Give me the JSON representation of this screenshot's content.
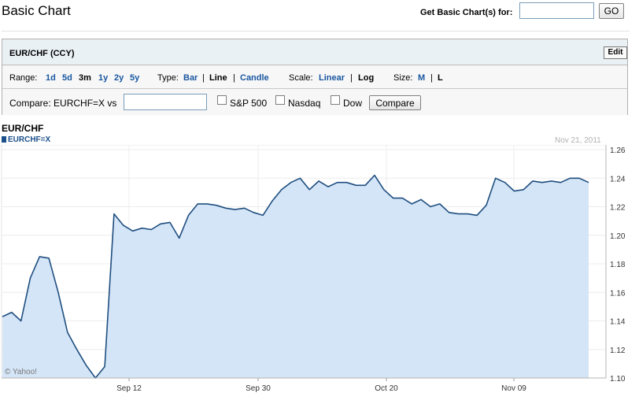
{
  "header": {
    "title": "Basic Chart",
    "lookup_label": "Get Basic Chart(s) for:",
    "lookup_value": "",
    "go_label": "GO"
  },
  "panel": {
    "symbol": "EUR/CHF (CCY)",
    "edit_label": "Edit",
    "range": {
      "label": "Range:",
      "options": [
        "1d",
        "5d",
        "3m",
        "1y",
        "2y",
        "5y"
      ],
      "selected": "3m"
    },
    "type": {
      "label": "Type:",
      "options": [
        "Bar",
        "Line",
        "Candle"
      ],
      "selected": "Line"
    },
    "scale": {
      "label": "Scale:",
      "options": [
        "Linear",
        "Log"
      ],
      "selected": "Log"
    },
    "size": {
      "label": "Size:",
      "options": [
        "M",
        "L"
      ]
    },
    "compare": {
      "label": "Compare: EURCHF=X vs",
      "input_value": "",
      "indices": [
        "S&P 500",
        "Nasdaq",
        "Dow"
      ],
      "button_label": "Compare"
    }
  },
  "chart_data": {
    "type": "area",
    "title": "EUR/CHF",
    "series": [
      {
        "name": "EURCHF=X",
        "values": [
          1.143,
          1.146,
          1.14,
          1.17,
          1.185,
          1.184,
          1.16,
          1.132,
          1.12,
          1.109,
          1.1,
          1.108,
          1.215,
          1.207,
          1.203,
          1.205,
          1.204,
          1.208,
          1.209,
          1.198,
          1.214,
          1.222,
          1.222,
          1.221,
          1.219,
          1.218,
          1.219,
          1.216,
          1.214,
          1.224,
          1.232,
          1.237,
          1.24,
          1.232,
          1.238,
          1.234,
          1.237,
          1.237,
          1.235,
          1.235,
          1.242,
          1.232,
          1.226,
          1.226,
          1.222,
          1.225,
          1.22,
          1.222,
          1.216,
          1.215,
          1.215,
          1.214,
          1.221,
          1.24,
          1.237,
          1.231,
          1.232,
          1.238,
          1.237,
          1.238,
          1.237,
          1.24,
          1.24,
          1.237
        ]
      }
    ],
    "x_ticks": [
      "Sep 12",
      "Sep 30",
      "Oct 20",
      "Nov 09"
    ],
    "y_ticks": [
      "1.10",
      "1.12",
      "1.14",
      "1.16",
      "1.18",
      "1.20",
      "1.22",
      "1.24",
      "1.26"
    ],
    "ylim": [
      1.1,
      1.26
    ],
    "date_label": "Nov 21, 2011",
    "copyright": "© Yahoo!",
    "line_color": "#1f4e7f",
    "fill_color": "#d4e5f7",
    "grid": true
  }
}
